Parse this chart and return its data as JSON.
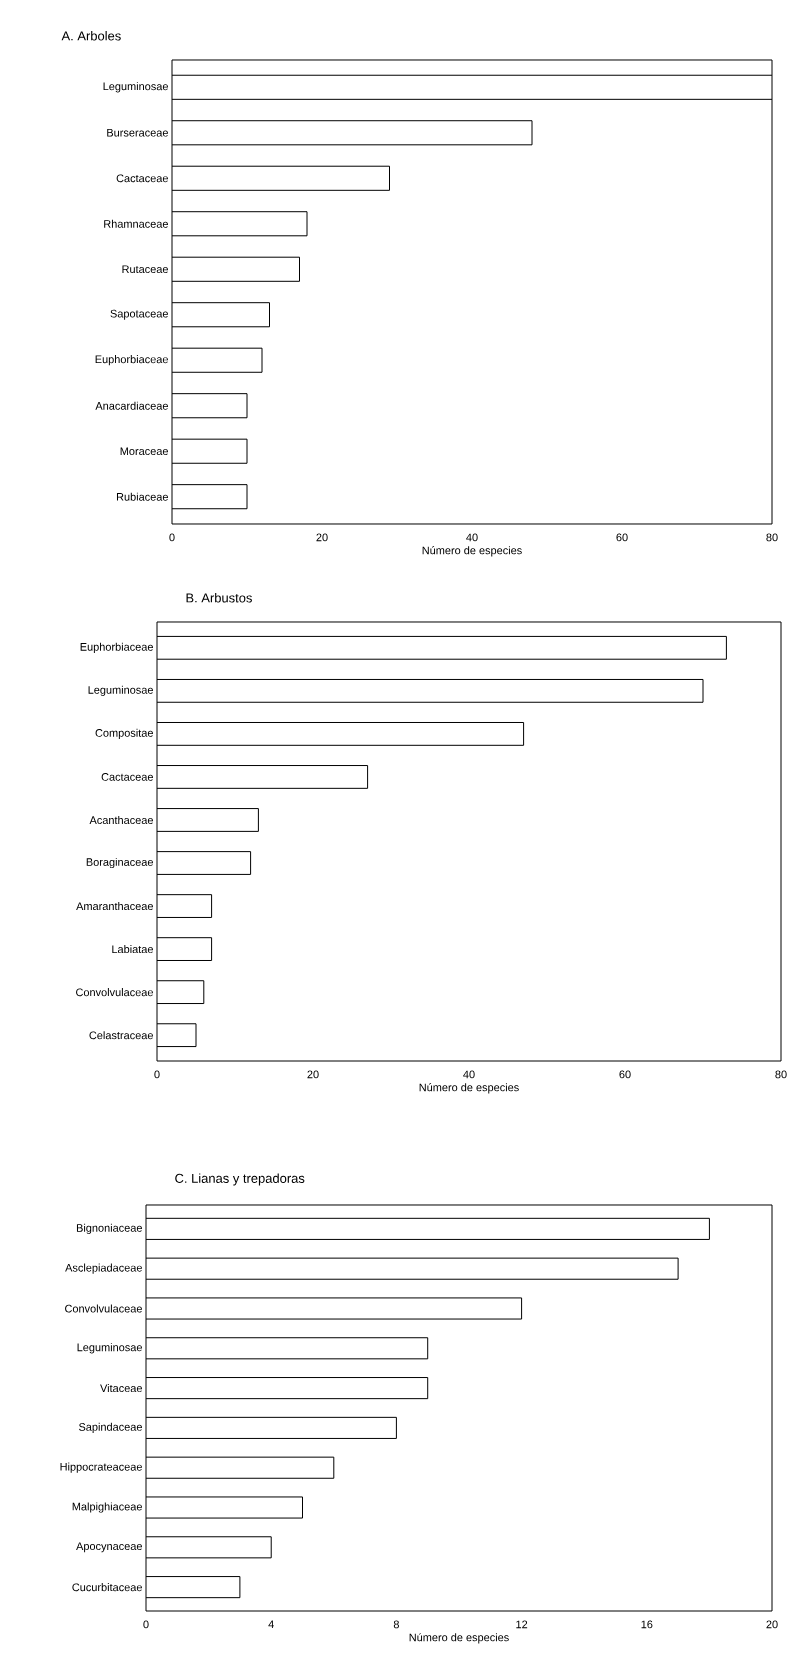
{
  "chart_data": [
    {
      "type": "bar",
      "orientation": "horizontal",
      "title": "A. Arboles",
      "xlabel": "Número de especies",
      "categories": [
        "Leguminosae",
        "Burseraceae",
        "Cactaceae",
        "Rhamnaceae",
        "Rutaceae",
        "Sapotaceae",
        "Euphorbiaceae",
        "Anacardiaceae",
        "Moraceae",
        "Rubiaceae"
      ],
      "values": [
        80,
        48,
        29,
        18,
        17,
        13,
        12,
        10,
        10,
        10
      ],
      "color": "#ffffff",
      "xlim": [
        0,
        80
      ],
      "xticks": [
        0,
        20,
        40,
        60,
        80
      ],
      "grid": false
    },
    {
      "type": "bar",
      "orientation": "horizontal",
      "title": "B. Arbustos",
      "xlabel": "Número de especies",
      "categories": [
        "Euphorbiaceae",
        "Leguminosae",
        "Compositae",
        "Cactaceae",
        "Acanthaceae",
        "Boraginaceae",
        "Amaranthaceae",
        "Labiatae",
        "Convolvulaceae",
        "Celastraceae"
      ],
      "values": [
        73,
        70,
        47,
        27,
        13,
        12,
        7,
        7,
        6,
        5
      ],
      "color": "#ffffff",
      "xlim": [
        0,
        80
      ],
      "xticks": [
        0,
        20,
        40,
        60,
        80
      ],
      "grid": false
    },
    {
      "type": "bar",
      "orientation": "horizontal",
      "title": "C. Lianas y trepadoras",
      "xlabel": "Número de especies",
      "categories": [
        "Bignoniaceae",
        "Asclepiadaceae",
        "Convolvulaceae",
        "Leguminosae",
        "Vitaceae",
        "Sapindaceae",
        "Hippocrateaceae",
        "Malpighiaceae",
        "Apocynaceae",
        "Cucurbitaceae"
      ],
      "values": [
        18,
        17,
        12,
        9,
        9,
        8,
        6,
        5,
        4,
        3
      ],
      "color": "#ffffff",
      "xlim": [
        0,
        20
      ],
      "xticks": [
        0,
        4,
        8,
        12,
        16,
        20
      ],
      "grid": false
    }
  ]
}
